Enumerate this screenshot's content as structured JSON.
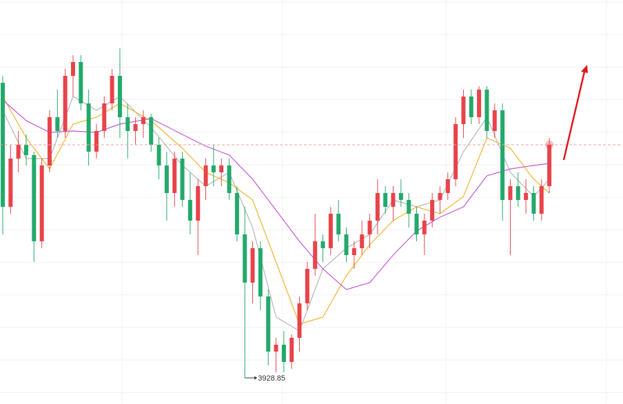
{
  "chart_data": {
    "type": "candlestick",
    "ylim": [
      3891,
      4477
    ],
    "up_color": "#e8434b",
    "down_color": "#23a96b",
    "series": [
      {
        "open": [
          4357,
          4177,
          4247,
          4267,
          4252,
          4127,
          4237,
          4307,
          4287,
          4367,
          4387,
          4327,
          4257,
          4287,
          4327,
          4367,
          4307,
          4287,
          4297,
          4307,
          4267,
          4237,
          4197,
          4247,
          4187,
          4157,
          4207,
          4237,
          4227,
          4237,
          4197,
          4137,
          4067,
          4117,
          4047,
          3967,
          3977,
          3952,
          3987,
          4037,
          4087,
          4127,
          4117,
          4167,
          4137,
          4107,
          4117,
          4137,
          4157,
          4197,
          4177,
          4197,
          4187,
          4167,
          4137,
          4157,
          4187,
          4197,
          4217,
          4297,
          4337,
          4307,
          4347,
          4287,
          4317,
          4187,
          4207,
          4187,
          4197,
          4167,
          4207
        ],
        "high": [
          4367,
          4267,
          4287,
          4282,
          4257,
          4247,
          4317,
          4347,
          4377,
          4397,
          4397,
          4347,
          4297,
          4337,
          4377,
          4407,
          4327,
          4307,
          4317,
          4312,
          4277,
          4257,
          4257,
          4257,
          4227,
          4217,
          4247,
          4267,
          4247,
          4247,
          4207,
          4177,
          4127,
          4127,
          4057,
          3987,
          3997,
          3992,
          4047,
          4097,
          4167,
          4137,
          4177,
          4187,
          4147,
          4127,
          4157,
          4167,
          4217,
          4207,
          4207,
          4217,
          4197,
          4177,
          4167,
          4197,
          4207,
          4227,
          4307,
          4347,
          4347,
          4352,
          4352,
          4327,
          4327,
          4217,
          4227,
          4217,
          4207,
          4217,
          4277
        ],
        "low": [
          4137,
          4167,
          4227,
          4237,
          4097,
          4117,
          4227,
          4277,
          4277,
          4337,
          4317,
          4237,
          4247,
          4277,
          4317,
          4277,
          4247,
          4267,
          4277,
          4257,
          4217,
          4157,
          4177,
          4177,
          4137,
          4107,
          4187,
          4207,
          4207,
          4187,
          4127,
          3928.85,
          4037,
          4027,
          3947,
          3937,
          3937,
          3942,
          3967,
          4027,
          4077,
          4097,
          4107,
          4127,
          4097,
          4087,
          4107,
          4117,
          4137,
          4167,
          4157,
          4177,
          4147,
          4127,
          4107,
          4147,
          4167,
          4187,
          4207,
          4277,
          4297,
          4297,
          4277,
          4277,
          4157,
          4107,
          4177,
          4167,
          4157,
          4157,
          4197
        ],
        "close": [
          4177,
          4247,
          4267,
          4252,
          4127,
          4237,
          4307,
          4287,
          4367,
          4387,
          4327,
          4257,
          4287,
          4327,
          4367,
          4307,
          4287,
          4297,
          4307,
          4267,
          4237,
          4197,
          4247,
          4187,
          4157,
          4207,
          4237,
          4227,
          4237,
          4197,
          4137,
          4067,
          4117,
          4047,
          3967,
          3977,
          3952,
          3987,
          4037,
          4087,
          4127,
          4117,
          4167,
          4137,
          4107,
          4117,
          4137,
          4157,
          4197,
          4177,
          4197,
          4187,
          4167,
          4137,
          4157,
          4187,
          4197,
          4217,
          4297,
          4337,
          4307,
          4347,
          4287,
          4317,
          4187,
          4207,
          4187,
          4197,
          4167,
          4207,
          4267
        ]
      }
    ],
    "moving_averages": [
      {
        "color": "#b5b5b5",
        "x": [
          0,
          3,
          6,
          9,
          12,
          15,
          19,
          23,
          26,
          29,
          32,
          35,
          38,
          41,
          44,
          47,
          50,
          53,
          56,
          59,
          62,
          65,
          68,
          70
        ],
        "values": [
          4317,
          4247,
          4247,
          4337,
          4317,
          4337,
          4292,
          4237,
          4207,
          4227,
          4147,
          4017,
          3997,
          4087,
          4117,
          4137,
          4187,
          4177,
          4187,
          4257,
          4307,
          4227,
          4192,
          4217
        ]
      },
      {
        "color": "#f0b429",
        "x": [
          0,
          3,
          6,
          9,
          12,
          15,
          19,
          23,
          26,
          29,
          32,
          35,
          38,
          41,
          44,
          47,
          50,
          53,
          56,
          59,
          62,
          65,
          68,
          70
        ],
        "values": [
          4337,
          4277,
          4232,
          4297,
          4307,
          4327,
          4302,
          4262,
          4227,
          4212,
          4187,
          4097,
          4007,
          4017,
          4077,
          4122,
          4157,
          4177,
          4167,
          4192,
          4277,
          4262,
          4217,
          4197
        ]
      },
      {
        "color": "#c455d6",
        "x": [
          0,
          3,
          6,
          9,
          12,
          15,
          19,
          23,
          26,
          29,
          32,
          35,
          38,
          41,
          44,
          47,
          50,
          53,
          56,
          59,
          62,
          65,
          68,
          70
        ],
        "values": [
          4332,
          4302,
          4285,
          4287,
          4285,
          4297,
          4305,
          4282,
          4265,
          4252,
          4217,
          4172,
          4127,
          4087,
          4057,
          4067,
          4107,
          4142,
          4162,
          4177,
          4222,
          4232,
          4237,
          4240
        ]
      }
    ],
    "grid": true
  }
}
